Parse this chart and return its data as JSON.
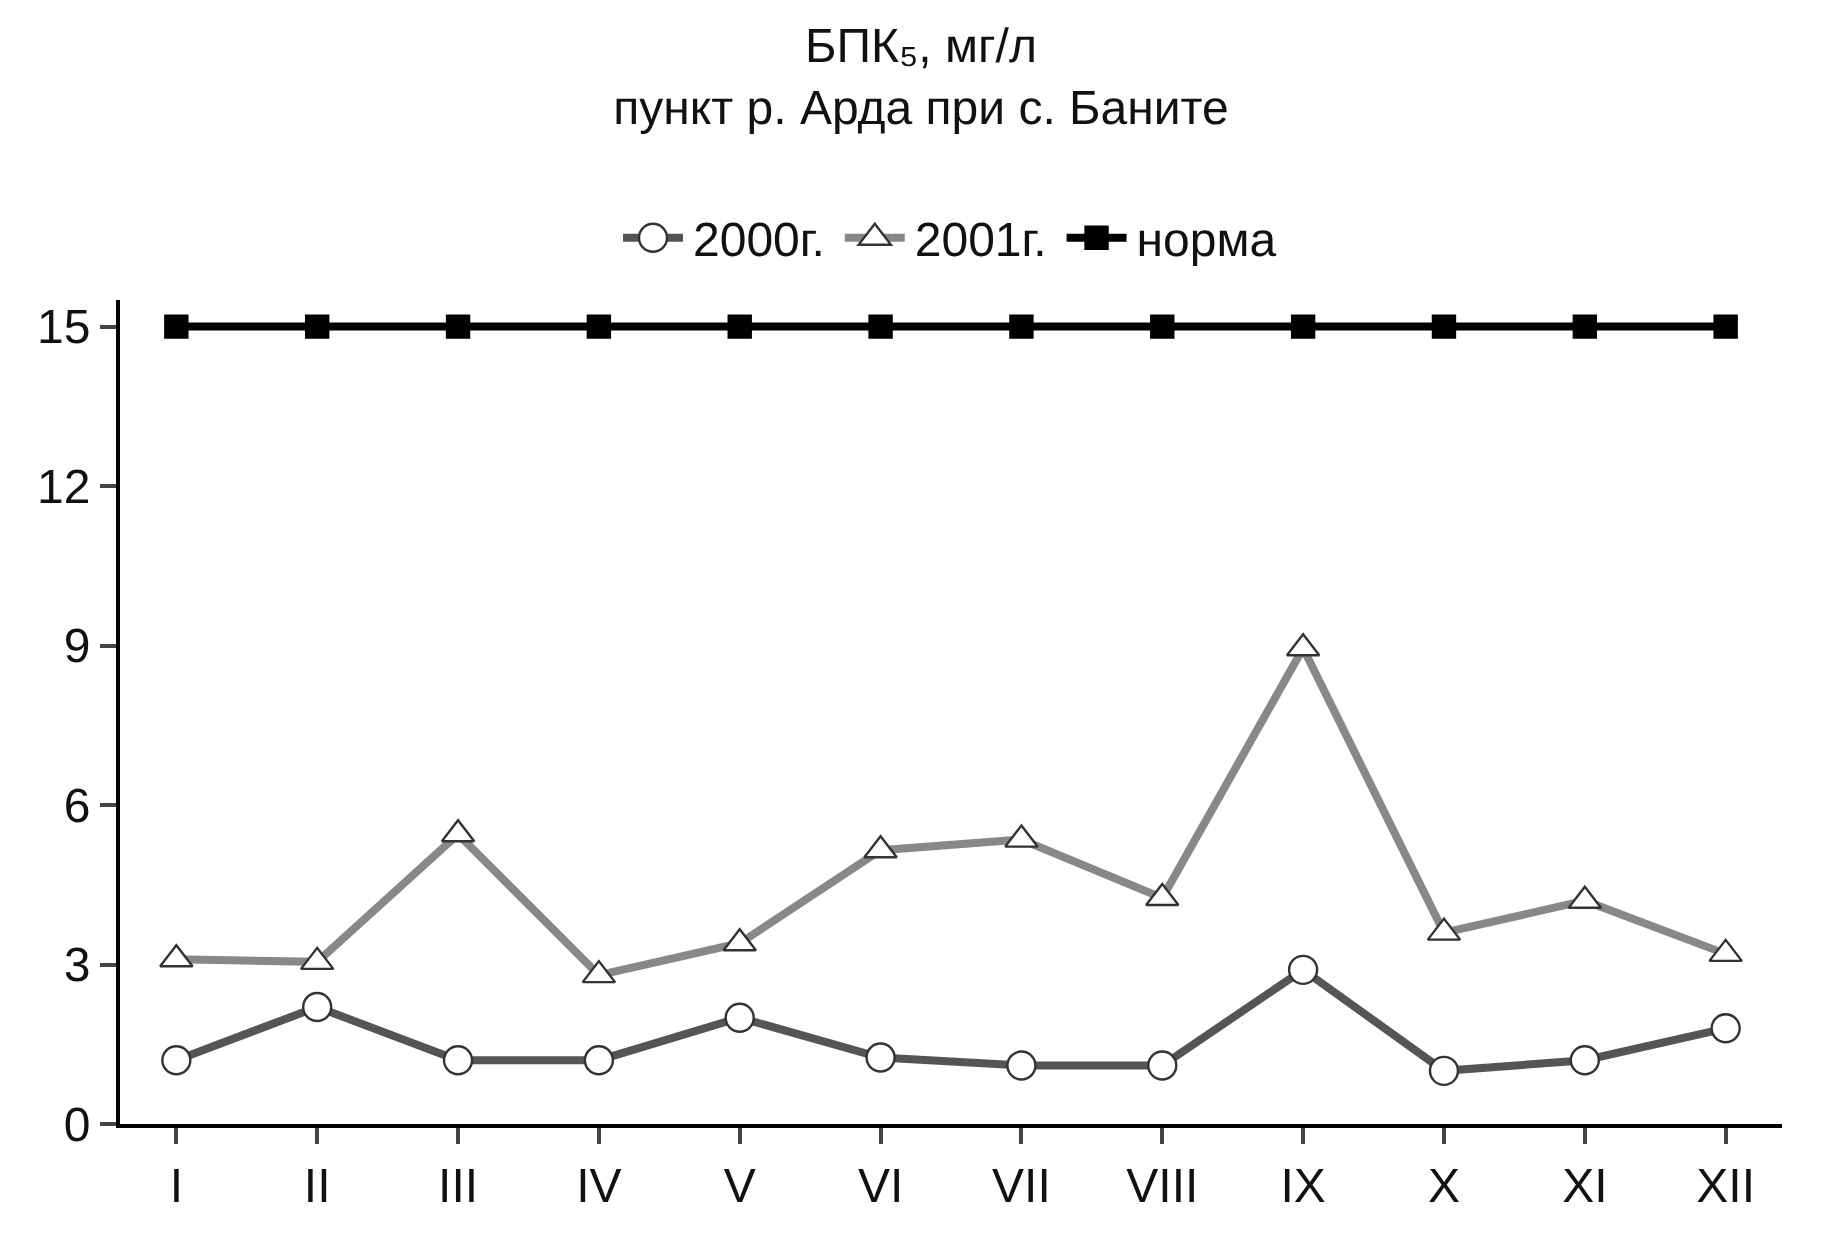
{
  "chart_data": {
    "type": "line",
    "title": "БПК₅, мг/л",
    "subtitle": "пункт р. Арда при с. Баните",
    "categories": [
      "I",
      "II",
      "III",
      "IV",
      "V",
      "VI",
      "VII",
      "VIII",
      "IX",
      "X",
      "XI",
      "XII"
    ],
    "series": [
      {
        "name": "2000г.",
        "color": "#555555",
        "marker": "circle",
        "values": [
          1.2,
          2.2,
          1.2,
          1.2,
          2.0,
          1.25,
          1.1,
          1.1,
          2.9,
          1.0,
          1.2,
          1.8
        ]
      },
      {
        "name": "2001г.",
        "color": "#888888",
        "marker": "triangle",
        "values": [
          3.1,
          3.05,
          5.45,
          2.8,
          3.4,
          5.15,
          5.35,
          4.25,
          8.95,
          3.6,
          4.2,
          3.2
        ]
      },
      {
        "name": "норма",
        "color": "#000000",
        "marker": "square",
        "values": [
          15,
          15,
          15,
          15,
          15,
          15,
          15,
          15,
          15,
          15,
          15,
          15
        ]
      }
    ],
    "ylim": [
      0,
      15.5
    ],
    "yticks": [
      0,
      3,
      6,
      9,
      12,
      15
    ],
    "grid": false,
    "legend": "top",
    "line_style": "solid"
  }
}
